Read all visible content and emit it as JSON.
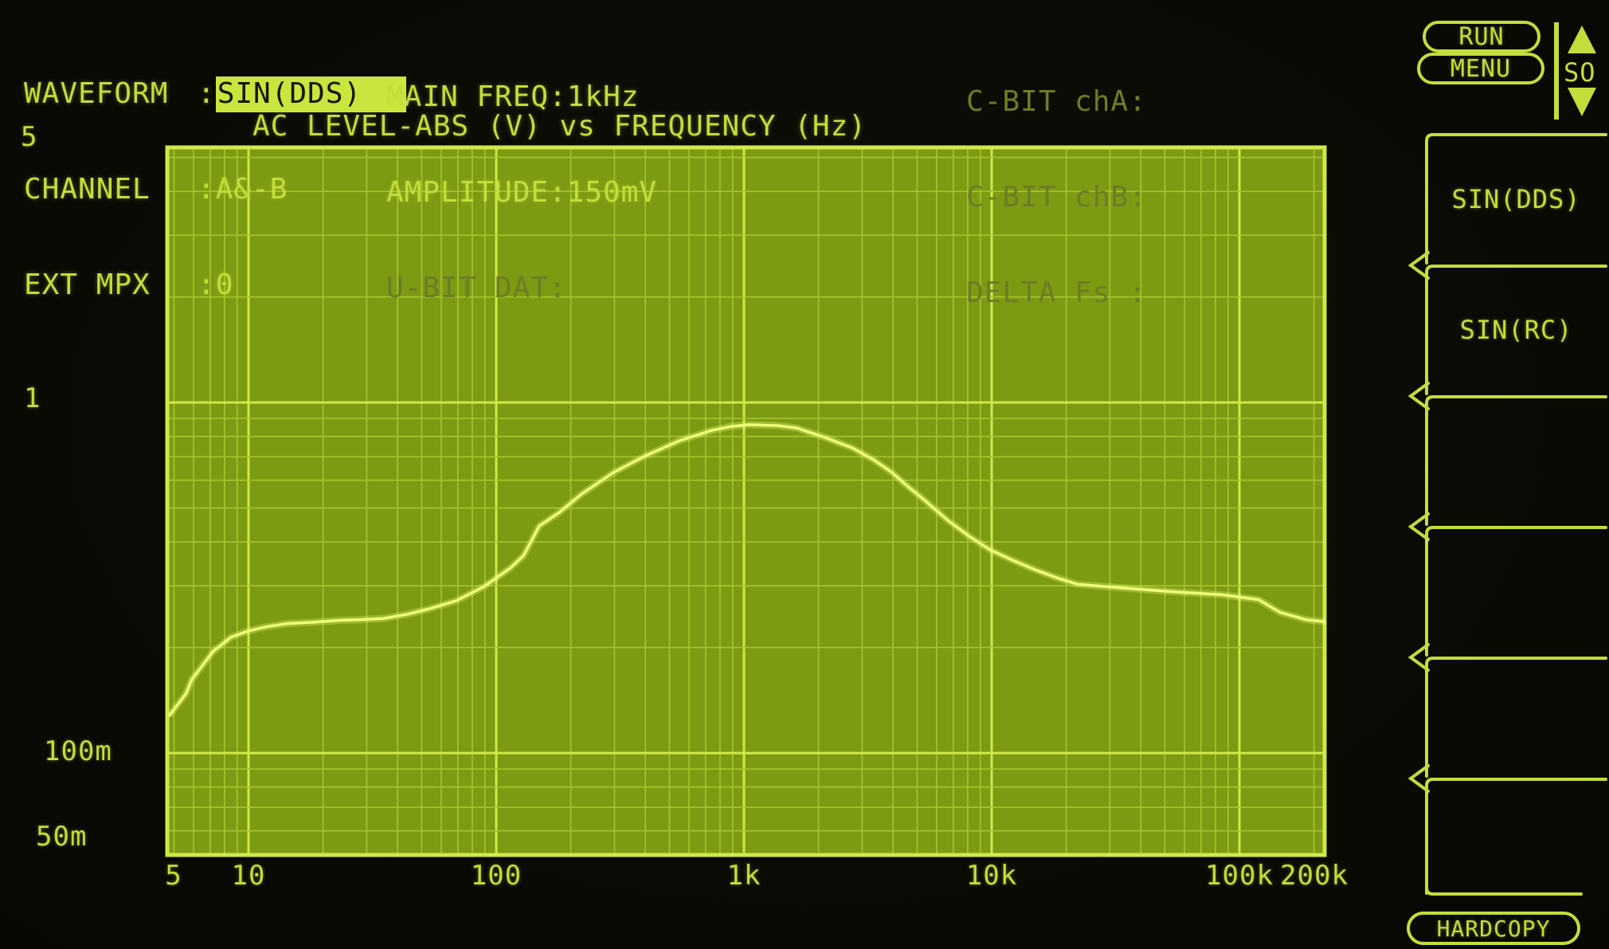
{
  "colors": {
    "bg": "#0a0a05",
    "bright": "#c3dd3a",
    "brighter": "#e4f565",
    "dim": "#6d7d24",
    "highlight_bg": "#c9e63e",
    "highlight_text": "#161600",
    "grid_fill": "#7d9a13",
    "grid_line": "#a6c52c",
    "grid_major": "#cfe84a",
    "curve": "#eeff7a"
  },
  "topbar": {
    "left": [
      {
        "label": "WAVEFORM",
        "sep": ":",
        "value": "SIN(DDS)"
      },
      {
        "label": "CHANNEL",
        "sep": ":",
        "value": "A&-B"
      },
      {
        "label": "EXT MPX",
        "sep": ":",
        "value": "0"
      }
    ],
    "middle": [
      {
        "text": "MAIN FREQ:1kHz"
      },
      {
        "text": "AMPLITUDE:150mV"
      },
      {
        "text": "U-BIT DAT:"
      }
    ],
    "right": [
      {
        "text": "C-BIT chA:"
      },
      {
        "text": "C-BIT chB:"
      },
      {
        "text": "DELTA Fs :"
      }
    ]
  },
  "buttons": {
    "run": "RUN",
    "menu": "MENU",
    "so_label": "SO",
    "hardcopy": "HARDCOPY"
  },
  "chart": {
    "title": "AC LEVEL-ABS (V) vs FREQUENCY (Hz)"
  },
  "chart_data": {
    "type": "line",
    "title": "AC LEVEL-ABS (V) vs FREQUENCY (Hz)",
    "xlabel": "FREQUENCY (Hz)",
    "ylabel": "AC LEVEL-ABS (V)",
    "grid": true,
    "x_axis": {
      "scale": "log",
      "min": 4.7,
      "max": 220800,
      "ticks": [
        {
          "f": 5,
          "label": "5"
        },
        {
          "f": 10,
          "label": "10"
        },
        {
          "f": 100,
          "label": "100"
        },
        {
          "f": 1000,
          "label": "1k"
        },
        {
          "f": 10000,
          "label": "10k"
        },
        {
          "f": 100000,
          "label": "100k"
        },
        {
          "f": 200000,
          "label": "200k"
        }
      ]
    },
    "y_axis": {
      "scale": "log",
      "min": 0.0512,
      "max": 5.34,
      "ticks": [
        {
          "v": 5,
          "label": "5"
        },
        {
          "v": 1,
          "label": "1"
        },
        {
          "v": 0.1,
          "label": "100m"
        },
        {
          "v": 0.05,
          "label": "50m"
        }
      ]
    },
    "points": [
      [
        4.8,
        0.128
      ],
      [
        5.6,
        0.148
      ],
      [
        5.9,
        0.162
      ],
      [
        7.2,
        0.195
      ],
      [
        8.5,
        0.214
      ],
      [
        10,
        0.223
      ],
      [
        11.7,
        0.229
      ],
      [
        14.3,
        0.234
      ],
      [
        18,
        0.236
      ],
      [
        23,
        0.239
      ],
      [
        28,
        0.24
      ],
      [
        35,
        0.242
      ],
      [
        44,
        0.249
      ],
      [
        55,
        0.259
      ],
      [
        69,
        0.272
      ],
      [
        89,
        0.298
      ],
      [
        114,
        0.337
      ],
      [
        129,
        0.366
      ],
      [
        149,
        0.444
      ],
      [
        180,
        0.486
      ],
      [
        221,
        0.548
      ],
      [
        297,
        0.631
      ],
      [
        399,
        0.704
      ],
      [
        549,
        0.778
      ],
      [
        738,
        0.832
      ],
      [
        882,
        0.854
      ],
      [
        1045,
        0.864
      ],
      [
        1374,
        0.859
      ],
      [
        1630,
        0.846
      ],
      [
        2080,
        0.799
      ],
      [
        2736,
        0.742
      ],
      [
        3342,
        0.686
      ],
      [
        3962,
        0.631
      ],
      [
        4495,
        0.583
      ],
      [
        5329,
        0.528
      ],
      [
        6654,
        0.461
      ],
      [
        8128,
        0.415
      ],
      [
        9847,
        0.38
      ],
      [
        12023,
        0.356
      ],
      [
        15017,
        0.333
      ],
      [
        18330,
        0.316
      ],
      [
        22233,
        0.303
      ],
      [
        31477,
        0.297
      ],
      [
        51748,
        0.289
      ],
      [
        84285,
        0.283
      ],
      [
        119400,
        0.274
      ],
      [
        145881,
        0.252
      ],
      [
        186209,
        0.24
      ],
      [
        220800,
        0.237
      ]
    ]
  },
  "side_menu": {
    "items": [
      "SIN(DDS)",
      "SIN(RC)",
      "",
      "",
      "",
      ""
    ]
  }
}
